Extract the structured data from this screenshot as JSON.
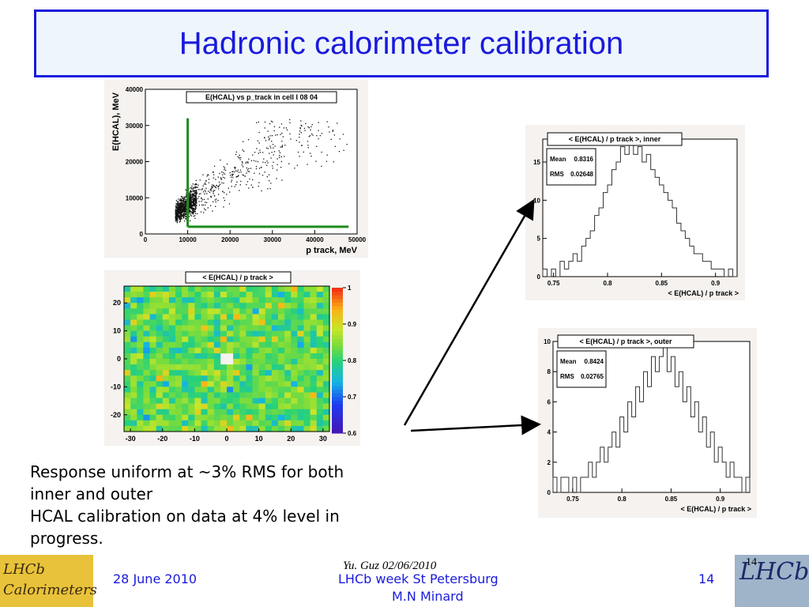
{
  "title": "Hadronic calorimeter calibration",
  "body_lines": [
    "Response uniform at  ~3% RMS for both",
    "inner and outer",
    "HCAL calibration on data at 4% level in",
    "progress."
  ],
  "footer": {
    "date": "28 June 2010",
    "venue_line1": "LHCb week St Petersburg",
    "venue_line2": "M.N Minard",
    "page": "14",
    "ghost_credit": "Yu. Guz 02/06/2010",
    "ghost_page": "14"
  },
  "logos": {
    "left_line1": "LHCb",
    "left_line2": "Calorimeters",
    "right_text": "LHCb"
  },
  "colors": {
    "title": "#1a1adc",
    "footer_text": "#1a1adc",
    "cut_line": "#1e8c1e",
    "histogram_line": "#333333"
  },
  "chart_data": [
    {
      "type": "scatter",
      "title": "E(HCAL) vs p_track in cell I 08 04",
      "xlabel": "p track, MeV",
      "ylabel": "E(HCAL), MeV",
      "xlim": [
        0,
        50000
      ],
      "ylim": [
        0,
        40000
      ],
      "xticks": [
        0,
        10000,
        20000,
        30000,
        40000,
        50000
      ],
      "yticks": [
        0,
        10000,
        20000,
        30000,
        40000
      ],
      "xtick_labels": [
        "0",
        "10000",
        "20000",
        "30000",
        "40000",
        "50000"
      ],
      "ytick_labels": [
        "0",
        "10000",
        "20000",
        "30000",
        "40000"
      ],
      "cuts": {
        "vertical_x": 10000,
        "vertical_ymax": 32000,
        "horizontal_y": 2000,
        "horizontal_xmax": 48000
      },
      "note": "dense point cloud, ~E/p 0.83"
    },
    {
      "type": "heatmap",
      "title": "< E(HCAL) / p track >",
      "xlim": [
        -32,
        32
      ],
      "ylim": [
        -26,
        26
      ],
      "xticks": [
        -30,
        -20,
        -10,
        0,
        10,
        20,
        30
      ],
      "yticks": [
        -20,
        -10,
        0,
        10,
        20
      ],
      "colorbar": {
        "min": 0.6,
        "max": 1.0,
        "ticks": [
          0.6,
          0.7,
          0.8,
          0.9,
          1.0
        ],
        "tick_labels": [
          "0.6",
          "0.7",
          "0.8",
          "0.9",
          "1"
        ]
      },
      "typical_value": 0.83
    },
    {
      "type": "bar",
      "subtype": "histogram",
      "title": "< E(HCAL) / p track >, inner",
      "xlabel": "< E(HCAL) / p track >",
      "xlim": [
        0.74,
        0.92
      ],
      "ylim": [
        0,
        18
      ],
      "xticks": [
        0.75,
        0.8,
        0.85,
        0.9
      ],
      "yticks": [
        0,
        5,
        10,
        15
      ],
      "stats": {
        "Mean": "0.8316",
        "RMS": "0.02648"
      },
      "bin_centers": [
        0.742,
        0.746,
        0.75,
        0.754,
        0.758,
        0.762,
        0.766,
        0.77,
        0.774,
        0.778,
        0.782,
        0.786,
        0.79,
        0.794,
        0.798,
        0.802,
        0.806,
        0.81,
        0.814,
        0.818,
        0.822,
        0.826,
        0.83,
        0.834,
        0.838,
        0.842,
        0.846,
        0.85,
        0.854,
        0.858,
        0.862,
        0.866,
        0.87,
        0.874,
        0.878,
        0.882,
        0.886,
        0.89,
        0.894,
        0.898,
        0.902,
        0.906,
        0.91,
        0.914,
        0.918
      ],
      "values": [
        1,
        0,
        1,
        0,
        2,
        1,
        2,
        3,
        2,
        4,
        5,
        6,
        8,
        9,
        11,
        12,
        14,
        15,
        17,
        16,
        18,
        16,
        17,
        15,
        16,
        14,
        13,
        12,
        11,
        10,
        9,
        7,
        6,
        5,
        4,
        3,
        3,
        2,
        2,
        1,
        1,
        1,
        0,
        1,
        0
      ]
    },
    {
      "type": "bar",
      "subtype": "histogram",
      "title": "< E(HCAL) / p track >, outer",
      "xlabel": "< E(HCAL) / p track >",
      "xlim": [
        0.73,
        0.93
      ],
      "ylim": [
        0,
        10
      ],
      "xticks": [
        0.75,
        0.8,
        0.85,
        0.9
      ],
      "yticks": [
        0,
        2,
        4,
        6,
        8,
        10
      ],
      "stats": {
        "Mean": "0.8424",
        "RMS": "0.02765"
      },
      "bin_centers": [
        0.732,
        0.736,
        0.74,
        0.744,
        0.748,
        0.752,
        0.756,
        0.76,
        0.764,
        0.768,
        0.772,
        0.776,
        0.78,
        0.784,
        0.788,
        0.792,
        0.796,
        0.8,
        0.804,
        0.808,
        0.812,
        0.816,
        0.82,
        0.824,
        0.828,
        0.832,
        0.836,
        0.84,
        0.844,
        0.848,
        0.852,
        0.856,
        0.86,
        0.864,
        0.868,
        0.872,
        0.876,
        0.88,
        0.884,
        0.888,
        0.892,
        0.896,
        0.9,
        0.904,
        0.908,
        0.912,
        0.916,
        0.92,
        0.924,
        0.928
      ],
      "values": [
        1,
        0,
        1,
        1,
        0,
        1,
        0,
        1,
        1,
        2,
        1,
        2,
        3,
        2,
        3,
        4,
        3,
        5,
        4,
        6,
        5,
        7,
        6,
        8,
        7,
        9,
        8,
        9,
        10,
        8,
        9,
        7,
        8,
        6,
        7,
        5,
        6,
        4,
        5,
        3,
        4,
        2,
        3,
        2,
        1,
        2,
        1,
        1,
        0,
        1
      ]
    }
  ]
}
